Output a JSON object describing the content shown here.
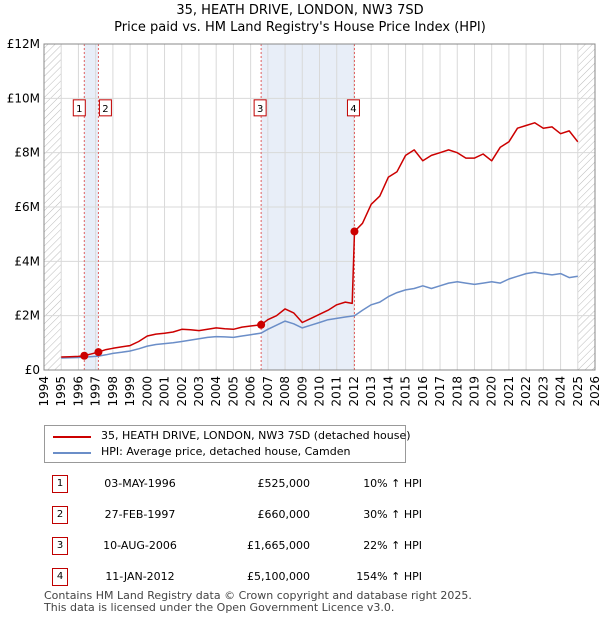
{
  "title_line1": "35, HEATH DRIVE, LONDON, NW3 7SD",
  "title_line2": "Price paid vs. HM Land Registry's House Price Index (HPI)",
  "legend": {
    "property_label": "35, HEATH DRIVE, LONDON, NW3 7SD (detached house)",
    "hpi_label": "HPI: Average price, detached house, Camden"
  },
  "colors": {
    "property": "#cc0000",
    "hpi": "#6b8ec8",
    "shade": "#e8eef8",
    "grid": "#d9d9d9"
  },
  "transactions": [
    {
      "num": "1",
      "date": "03-MAY-1996",
      "price": "£525,000",
      "hpi": "10% ↑ HPI"
    },
    {
      "num": "2",
      "date": "27-FEB-1997",
      "price": "£660,000",
      "hpi": "30% ↑ HPI"
    },
    {
      "num": "3",
      "date": "10-AUG-2006",
      "price": "£1,665,000",
      "hpi": "22% ↑ HPI"
    },
    {
      "num": "4",
      "date": "11-JAN-2012",
      "price": "£5,100,000",
      "hpi": "154% ↑ HPI"
    }
  ],
  "footer_line1": "Contains HM Land Registry data © Crown copyright and database right 2025.",
  "footer_line2": "This data is licensed under the Open Government Licence v3.0.",
  "chart_data": {
    "type": "line",
    "title": "35, HEATH DRIVE, LONDON, NW3 7SD — Price paid vs. HM Land Registry's House Price Index (HPI)",
    "xlabel": "",
    "ylabel": "",
    "xlim": [
      1994,
      2026
    ],
    "ylim": [
      0,
      12000000
    ],
    "x_ticks": [
      1994,
      1995,
      1996,
      1997,
      1998,
      1999,
      2000,
      2001,
      2002,
      2003,
      2004,
      2005,
      2006,
      2007,
      2008,
      2009,
      2010,
      2011,
      2012,
      2013,
      2014,
      2015,
      2016,
      2017,
      2018,
      2019,
      2020,
      2021,
      2022,
      2023,
      2024,
      2025,
      2026
    ],
    "y_ticks": [
      {
        "value": 0,
        "label": "£0"
      },
      {
        "value": 2000000,
        "label": "£2M"
      },
      {
        "value": 4000000,
        "label": "£4M"
      },
      {
        "value": 6000000,
        "label": "£6M"
      },
      {
        "value": 8000000,
        "label": "£8M"
      },
      {
        "value": 10000000,
        "label": "£10M"
      },
      {
        "value": 12000000,
        "label": "£12M"
      }
    ],
    "shaded_spans": [
      [
        1996.34,
        1997.16
      ],
      [
        2006.61,
        2012.03
      ]
    ],
    "hatched_spans": [
      [
        1994.0,
        1995.0
      ],
      [
        2025.0,
        2026.0
      ]
    ],
    "series": [
      {
        "name": "35, HEATH DRIVE, LONDON, NW3 7SD (detached house)",
        "x": [
          1995.0,
          1995.5,
          1996.0,
          1996.34,
          1996.8,
          1997.16,
          1997.6,
          1998.0,
          1998.5,
          1999.0,
          1999.5,
          2000.0,
          2000.5,
          2001.0,
          2001.5,
          2002.0,
          2002.5,
          2003.0,
          2003.5,
          2004.0,
          2004.5,
          2005.0,
          2005.5,
          2006.0,
          2006.61,
          2007.0,
          2007.5,
          2008.0,
          2008.5,
          2009.0,
          2009.5,
          2010.0,
          2010.5,
          2011.0,
          2011.5,
          2011.9,
          2012.03,
          2012.5,
          2013.0,
          2013.5,
          2014.0,
          2014.5,
          2015.0,
          2015.5,
          2016.0,
          2016.5,
          2017.0,
          2017.5,
          2018.0,
          2018.5,
          2019.0,
          2019.5,
          2020.0,
          2020.5,
          2021.0,
          2021.5,
          2022.0,
          2022.5,
          2023.0,
          2023.5,
          2024.0,
          2024.5,
          2025.0
        ],
        "y": [
          480000,
          490000,
          500000,
          525000,
          600000,
          660000,
          750000,
          800000,
          850000,
          900000,
          1050000,
          1250000,
          1320000,
          1350000,
          1400000,
          1500000,
          1480000,
          1450000,
          1500000,
          1550000,
          1520000,
          1500000,
          1580000,
          1620000,
          1665000,
          1850000,
          2000000,
          2250000,
          2100000,
          1750000,
          1900000,
          2050000,
          2200000,
          2400000,
          2500000,
          2450000,
          5100000,
          5400000,
          6100000,
          6400000,
          7100000,
          7300000,
          7900000,
          8100000,
          7700000,
          7900000,
          8000000,
          8100000,
          8000000,
          7800000,
          7800000,
          7950000,
          7700000,
          8200000,
          8400000,
          8900000,
          9000000,
          9100000,
          8900000,
          8950000,
          8700000,
          8800000,
          8400000
        ]
      },
      {
        "name": "HPI: Average price, detached house, Camden",
        "x": [
          1995.0,
          1995.5,
          1996.0,
          1996.34,
          1996.8,
          1997.16,
          1997.6,
          1998.0,
          1998.5,
          1999.0,
          1999.5,
          2000.0,
          2000.5,
          2001.0,
          2001.5,
          2002.0,
          2002.5,
          2003.0,
          2003.5,
          2004.0,
          2004.5,
          2005.0,
          2005.5,
          2006.0,
          2006.61,
          2007.0,
          2007.5,
          2008.0,
          2008.5,
          2009.0,
          2009.5,
          2010.0,
          2010.5,
          2011.0,
          2011.5,
          2012.03,
          2012.5,
          2013.0,
          2013.5,
          2014.0,
          2014.5,
          2015.0,
          2015.5,
          2016.0,
          2016.5,
          2017.0,
          2017.5,
          2018.0,
          2018.5,
          2019.0,
          2019.5,
          2020.0,
          2020.5,
          2021.0,
          2021.5,
          2022.0,
          2022.5,
          2023.0,
          2023.5,
          2024.0,
          2024.5,
          2025.0
        ],
        "y": [
          440000,
          450000,
          460000,
          475000,
          495000,
          510000,
          560000,
          610000,
          650000,
          700000,
          780000,
          880000,
          940000,
          970000,
          1000000,
          1050000,
          1100000,
          1150000,
          1200000,
          1230000,
          1220000,
          1200000,
          1250000,
          1300000,
          1360000,
          1500000,
          1650000,
          1800000,
          1700000,
          1550000,
          1650000,
          1750000,
          1850000,
          1900000,
          1950000,
          2000000,
          2200000,
          2400000,
          2500000,
          2700000,
          2850000,
          2950000,
          3000000,
          3100000,
          3000000,
          3100000,
          3200000,
          3250000,
          3200000,
          3150000,
          3200000,
          3250000,
          3200000,
          3350000,
          3450000,
          3550000,
          3600000,
          3550000,
          3500000,
          3550000,
          3400000,
          3450000
        ]
      }
    ],
    "sale_points": [
      {
        "label": "1",
        "x": 1996.34,
        "y": 525000
      },
      {
        "label": "2",
        "x": 1997.16,
        "y": 660000
      },
      {
        "label": "3",
        "x": 2006.61,
        "y": 1665000
      },
      {
        "label": "4",
        "x": 2012.03,
        "y": 5100000
      }
    ],
    "marker_box_value": 9650000
  }
}
